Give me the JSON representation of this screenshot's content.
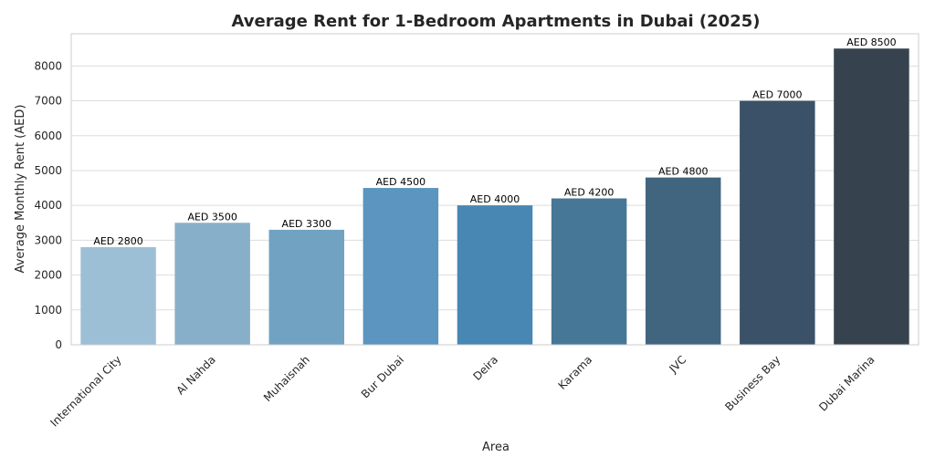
{
  "chart_data": {
    "type": "bar",
    "title": "Average Rent for 1-Bedroom Apartments in Dubai (2025)",
    "xlabel": "Area",
    "ylabel": "Average Monthly Rent (AED)",
    "categories": [
      "International City",
      "Al Nahda",
      "Muhaisnah",
      "Bur Dubai",
      "Deira",
      "Karama",
      "JVC",
      "Business Bay",
      "Dubai Marina"
    ],
    "values": [
      2800,
      3500,
      3300,
      4500,
      4000,
      4200,
      4800,
      7000,
      8500
    ],
    "data_labels": [
      "AED 2800",
      "AED 3500",
      "AED 3300",
      "AED 4500",
      "AED 4000",
      "AED 4200",
      "AED 4800",
      "AED 7000",
      "AED 8500"
    ],
    "colors": [
      "#9dbfd6",
      "#88afc9",
      "#72a2c2",
      "#5b95c0",
      "#4886b3",
      "#467797",
      "#41657f",
      "#3b5168",
      "#36434e"
    ],
    "ylim": [
      0,
      8925
    ],
    "yticks": [
      0,
      1000,
      2000,
      3000,
      4000,
      5000,
      6000,
      7000,
      8000
    ],
    "ytick_labels": [
      "0",
      "1000",
      "2000",
      "3000",
      "4000",
      "5000",
      "6000",
      "7000",
      "8000"
    ],
    "grid": true,
    "grid_axis": "y"
  }
}
